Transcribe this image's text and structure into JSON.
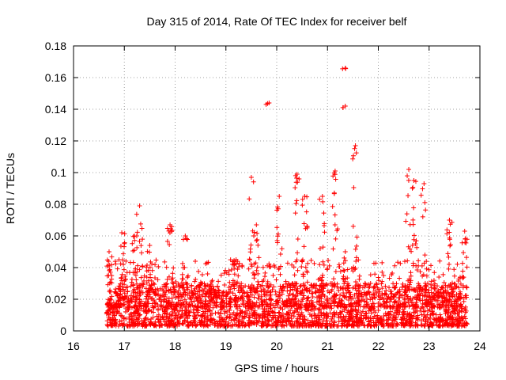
{
  "chart_data": {
    "type": "scatter",
    "title": "Day 315 of 2014, Rate Of TEC Index for receiver belf",
    "xlabel": "GPS time / hours",
    "ylabel": "ROTI / TECUs",
    "xlim": [
      16,
      24
    ],
    "ylim": [
      0,
      0.18
    ],
    "x_ticks": [
      16,
      17,
      18,
      19,
      20,
      21,
      22,
      23,
      24
    ],
    "y_ticks": [
      0,
      0.02,
      0.04,
      0.06,
      0.08,
      0.1,
      0.12,
      0.14,
      0.16,
      0.18
    ],
    "x_tick_labels": [
      "16",
      "17",
      "18",
      "19",
      "20",
      "21",
      "22",
      "23",
      "24"
    ],
    "y_tick_labels": [
      "0",
      "0.02",
      "0.04",
      "0.06",
      "0.08",
      "0.1",
      "0.12",
      "0.14",
      "0.16",
      "0.18"
    ],
    "grid": true,
    "marker": "+",
    "color": "#ff0000",
    "series": [
      {
        "name": "ROTI",
        "peaks": [
          {
            "x": 16.7,
            "y": 0.05
          },
          {
            "x": 16.95,
            "y": 0.062
          },
          {
            "x": 17.2,
            "y": 0.06
          },
          {
            "x": 17.3,
            "y": 0.079
          },
          {
            "x": 17.5,
            "y": 0.054
          },
          {
            "x": 17.9,
            "y": 0.067
          },
          {
            "x": 18.2,
            "y": 0.06
          },
          {
            "x": 19.2,
            "y": 0.045
          },
          {
            "x": 19.5,
            "y": 0.097
          },
          {
            "x": 19.6,
            "y": 0.067
          },
          {
            "x": 19.85,
            "y": 0.144
          },
          {
            "x": 20.05,
            "y": 0.085
          },
          {
            "x": 20.4,
            "y": 0.099
          },
          {
            "x": 20.55,
            "y": 0.085
          },
          {
            "x": 20.9,
            "y": 0.085
          },
          {
            "x": 21.15,
            "y": 0.101
          },
          {
            "x": 21.35,
            "y": 0.166
          },
          {
            "x": 21.35,
            "y": 0.142
          },
          {
            "x": 21.55,
            "y": 0.117
          },
          {
            "x": 21.35,
            "y": 0.05
          },
          {
            "x": 22.6,
            "y": 0.102
          },
          {
            "x": 22.7,
            "y": 0.095
          },
          {
            "x": 22.9,
            "y": 0.093
          },
          {
            "x": 23.4,
            "y": 0.07
          },
          {
            "x": 23.7,
            "y": 0.063
          }
        ],
        "x_range": [
          16.65,
          23.75
        ],
        "baseline_range": [
          0.003,
          0.03
        ]
      }
    ]
  }
}
